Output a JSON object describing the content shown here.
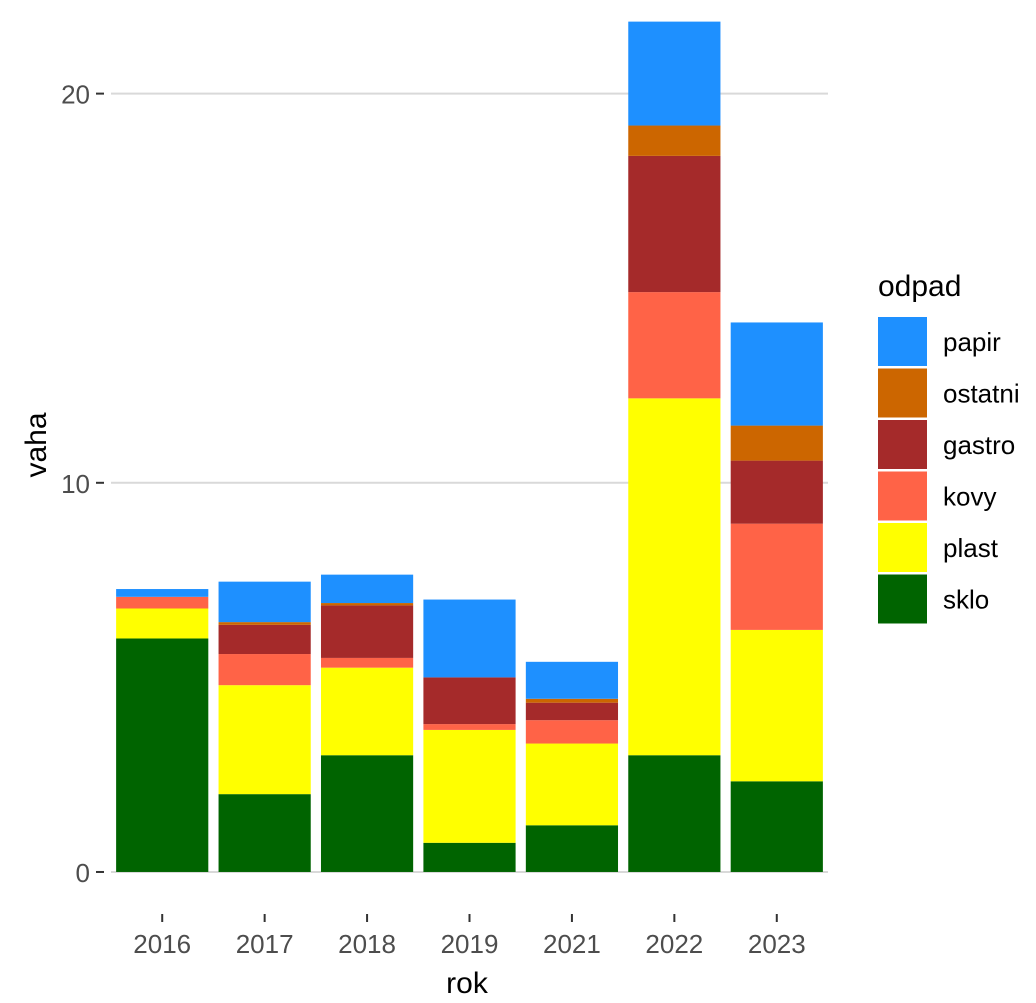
{
  "chart_data": {
    "type": "bar",
    "stacked": true,
    "title": "",
    "xlabel": "rok",
    "ylabel": "vaha",
    "categories": [
      "2016",
      "2017",
      "2018",
      "2019",
      "2021",
      "2022",
      "2023"
    ],
    "y_ticks": [
      0,
      10,
      20
    ],
    "y_tick_labels": [
      "0",
      "10",
      "20"
    ],
    "ylim": [
      -0.9,
      22.2
    ],
    "grid": "horizontal major",
    "legend": {
      "title": "odpad",
      "position": "right"
    },
    "series": [
      {
        "name": "sklo",
        "color": "#006400",
        "values": [
          6.0,
          2.0,
          3.0,
          0.75,
          1.2,
          3.0,
          2.33
        ]
      },
      {
        "name": "plast",
        "color": "#FFFF00",
        "values": [
          0.77,
          2.8,
          2.25,
          2.9,
          2.1,
          9.17,
          3.89
        ]
      },
      {
        "name": "kovy",
        "color": "#FF6347",
        "values": [
          0.3,
          0.8,
          0.25,
          0.15,
          0.6,
          2.73,
          2.73
        ]
      },
      {
        "name": "gastro",
        "color": "#A52A2A",
        "values": [
          0.0,
          0.75,
          1.35,
          1.2,
          0.45,
          3.5,
          1.62
        ]
      },
      {
        "name": "ostatni",
        "color": "#CC6600",
        "values": [
          0.0,
          0.07,
          0.06,
          0.0,
          0.1,
          0.78,
          0.9
        ]
      },
      {
        "name": "papir",
        "color": "#1E90FF",
        "values": [
          0.2,
          1.04,
          0.73,
          2.0,
          0.95,
          2.67,
          2.65
        ]
      }
    ],
    "legend_order": [
      "papir",
      "ostatni",
      "gastro",
      "kovy",
      "plast",
      "sklo"
    ]
  }
}
